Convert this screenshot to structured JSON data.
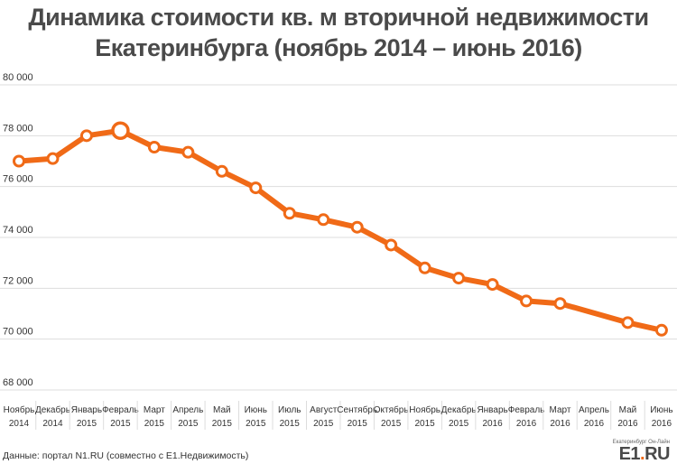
{
  "title": {
    "line1": "Динамика стоимости кв. м вторичной недвижимости",
    "line2": "Екатеринбурга (ноябрь 2014 – июнь 2016)"
  },
  "source": "Данные: портал N1.RU (совместно с E1.Недвижимость)",
  "logo": {
    "tagline": "Екатеринбург Он-Лайн",
    "name_prefix": "E1",
    "name_dot": ".",
    "name_suffix": "RU"
  },
  "colors": {
    "line": "#f06a17",
    "grid": "#dddddd",
    "text": "#333333",
    "title": "#4a4a4a"
  },
  "chart_data": {
    "type": "line",
    "categories": [
      "Ноябрь 2014",
      "Декабрь 2014",
      "Январь 2015",
      "Февраль 2015",
      "Март 2015",
      "Апрель 2015",
      "Май 2015",
      "Июнь 2015",
      "Июль 2015",
      "Август 2015",
      "Сентябрь 2015",
      "Октябрь 2015",
      "Ноябрь 2015",
      "Декабрь 2015",
      "Январь 2016",
      "Февраль 2016",
      "Март 2016",
      "Апрель 2016",
      "Май 2016",
      "Июнь 2016"
    ],
    "category_lines": [
      [
        "Ноябрь",
        "2014"
      ],
      [
        "Декабрь",
        "2014"
      ],
      [
        "Январь",
        "2015"
      ],
      [
        "Февраль",
        "2015"
      ],
      [
        "Март",
        "2015"
      ],
      [
        "Апрель",
        "2015"
      ],
      [
        "Май",
        "2015"
      ],
      [
        "Июнь",
        "2015"
      ],
      [
        "Июль",
        "2015"
      ],
      [
        "Август",
        "2015"
      ],
      [
        "Сентябрь",
        "2015"
      ],
      [
        "Октябрь",
        "2015"
      ],
      [
        "Ноябрь",
        "2015"
      ],
      [
        "Декабрь",
        "2015"
      ],
      [
        "Январь",
        "2016"
      ],
      [
        "Февраль",
        "2016"
      ],
      [
        "Март",
        "2016"
      ],
      [
        "Апрель",
        "2016"
      ],
      [
        "Май",
        "2016"
      ],
      [
        "Июнь",
        "2016"
      ]
    ],
    "series": [
      {
        "values": [
          77000,
          77100,
          78000,
          78200,
          77550,
          77350,
          76600,
          75950,
          74950,
          74700,
          74400,
          73700,
          72800,
          72400,
          72150,
          71500,
          71400,
          null,
          70650,
          70350
        ],
        "highlight_index": 3
      }
    ],
    "ylim": [
      68000,
      80000
    ],
    "yticks": [
      68000,
      70000,
      72000,
      74000,
      76000,
      78000,
      80000
    ],
    "ytick_labels": [
      "68 000",
      "70 000",
      "72 000",
      "74 000",
      "76 000",
      "78 000",
      "80 000"
    ],
    "grid": true,
    "legend": "none",
    "xlabel": "",
    "ylabel": ""
  }
}
